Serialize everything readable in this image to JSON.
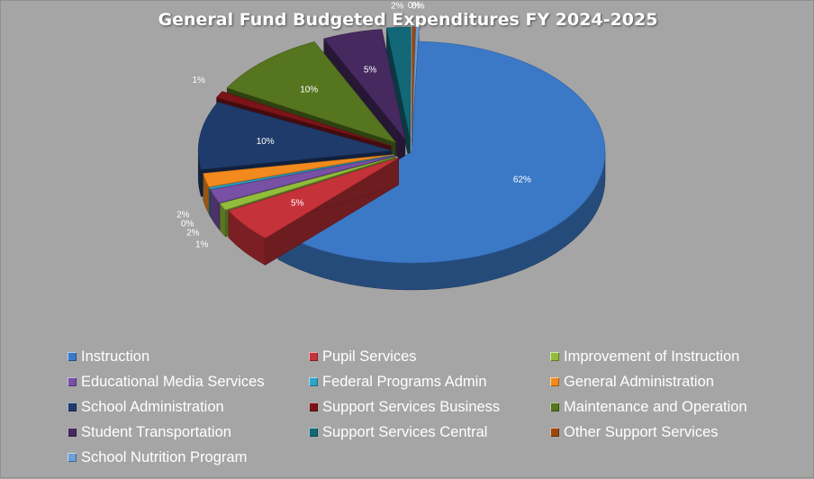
{
  "chart_data": {
    "type": "pie",
    "title": "General Fund Budgeted Expenditures FY 2024-2025",
    "categories": [
      "Instruction",
      "Pupil Services",
      "Improvement of Instruction",
      "Educational Media Services",
      "Federal Programs Admin",
      "General Administration",
      "School Administration",
      "Support Services Business",
      "Maintenance and Operation",
      "Student Transportation",
      "Support Services Central",
      "Other Support Services",
      "School Nutrition Program"
    ],
    "values": [
      62,
      5,
      1,
      2,
      0,
      2,
      10,
      1,
      10,
      5,
      2,
      0,
      0
    ],
    "data_labels": [
      "62%",
      "5%",
      "1%",
      "2%",
      "0%",
      "2%",
      "10%",
      "1%",
      "10%",
      "5%",
      "2%",
      "0%",
      "0%"
    ],
    "colors": [
      "#3b79c7",
      "#c6323a",
      "#92bd3c",
      "#7850a6",
      "#2fa6c8",
      "#f38a1e",
      "#1f3b6b",
      "#7a1419",
      "#56751f",
      "#45295f",
      "#136877",
      "#9c480d",
      "#6c9fd4"
    ],
    "style": "exploded 3d pie",
    "legend": "bottom"
  }
}
